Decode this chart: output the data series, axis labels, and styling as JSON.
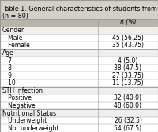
{
  "title_line1": "Table 1. General characteristics of students from SDN 060925",
  "title_line2": "(n = 80)",
  "header_col2": "n (%)",
  "rows": [
    [
      "Gender",
      ""
    ],
    [
      "   Male",
      "45 (56.25)"
    ],
    [
      "   Female",
      "35 (43.75)"
    ],
    [
      "Age",
      ""
    ],
    [
      "   7",
      "4 (5.0)"
    ],
    [
      "   8",
      "38 (47.5)"
    ],
    [
      "   9",
      "27 (33.75)"
    ],
    [
      "   10",
      "11 (13.75)"
    ],
    [
      "STH infection",
      ""
    ],
    [
      "   Positive",
      "32 (40.0)"
    ],
    [
      "   Negative",
      "48 (60.0)"
    ],
    [
      "Nutritional Status",
      ""
    ],
    [
      "   Underweight",
      "26 (32.5)"
    ],
    [
      "   Not underweight",
      "54 (67.5)"
    ]
  ],
  "category_rows": [
    0,
    3,
    8,
    11
  ],
  "title_bg": "#d4d0c8",
  "header_bg": "#b8b4aa",
  "category_bg": "#f0eeea",
  "row_bg": "#ffffff",
  "border_color": "#999999",
  "title_fontsize": 5.8,
  "cell_fontsize": 5.5,
  "col_split": 0.62
}
